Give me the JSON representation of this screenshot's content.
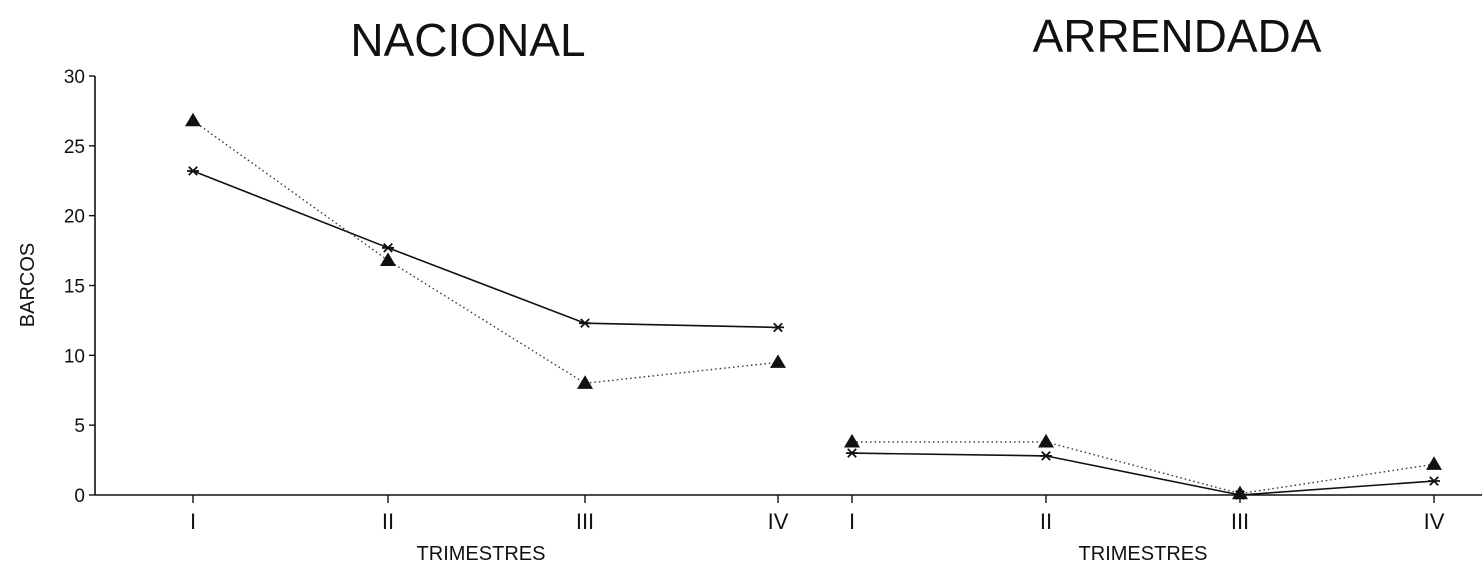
{
  "chart_data": [
    {
      "type": "line",
      "title": "NACIONAL",
      "xlabel": "TRIMESTRES",
      "ylabel": "BARCOS",
      "categories": [
        "I",
        "II",
        "III",
        "IV"
      ],
      "ylim": [
        0,
        30
      ],
      "yticks": [
        "0",
        "5",
        "10",
        "15",
        "20",
        "25",
        "30"
      ],
      "grid": false,
      "series": [
        {
          "marker": "star",
          "line": "solid",
          "values": [
            23.2,
            17.7,
            12.3,
            12.0
          ]
        },
        {
          "marker": "triangle",
          "line": "dotted",
          "values": [
            26.8,
            16.8,
            8.0,
            9.5
          ]
        }
      ]
    },
    {
      "type": "line",
      "title": "ARRENDADA",
      "xlabel": "TRIMESTRES",
      "ylabel": "",
      "categories": [
        "I",
        "II",
        "III",
        "IV"
      ],
      "ylim": [
        0,
        30
      ],
      "grid": false,
      "series": [
        {
          "marker": "star",
          "line": "solid",
          "values": [
            3.0,
            2.8,
            0.0,
            1.0
          ]
        },
        {
          "marker": "triangle",
          "line": "dotted",
          "values": [
            3.8,
            3.8,
            0.1,
            2.2
          ]
        }
      ]
    }
  ]
}
